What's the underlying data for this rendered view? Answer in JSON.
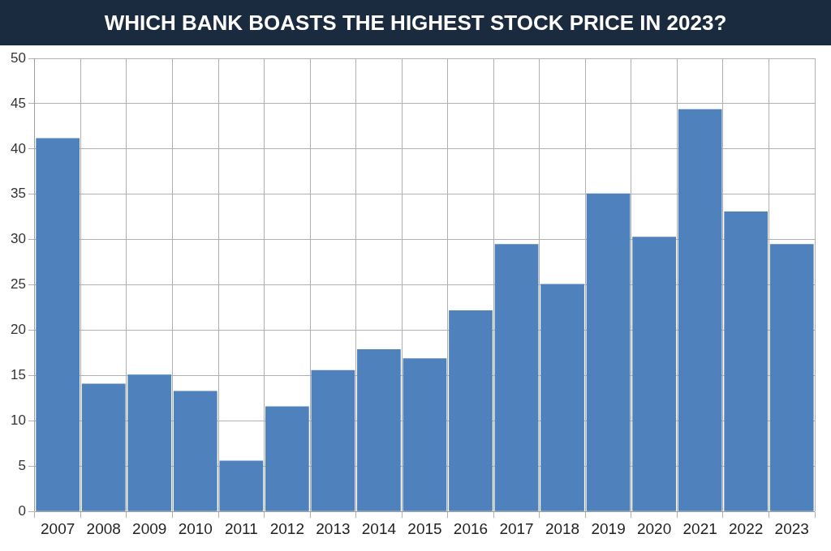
{
  "chart_data": {
    "type": "bar",
    "title": "WHICH BANK BOASTS THE HIGHEST STOCK PRICE IN 2023?",
    "categories": [
      "2007",
      "2008",
      "2009",
      "2010",
      "2011",
      "2012",
      "2013",
      "2014",
      "2015",
      "2016",
      "2017",
      "2018",
      "2019",
      "2020",
      "2021",
      "2022",
      "2023"
    ],
    "values": [
      41.2,
      14.1,
      15.1,
      13.3,
      5.6,
      11.6,
      15.6,
      17.9,
      16.9,
      22.2,
      29.5,
      25.1,
      35.1,
      30.3,
      44.4,
      33.1,
      29.5
    ],
    "color": "#4f81bd",
    "ylim": [
      0,
      50
    ],
    "yticks": [
      0,
      5,
      10,
      15,
      20,
      25,
      30,
      35,
      40,
      45,
      50
    ],
    "grid": true
  }
}
